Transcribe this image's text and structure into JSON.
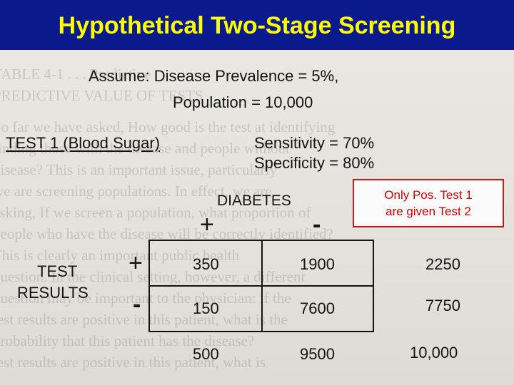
{
  "slide": {
    "title": "Hypothetical Two-Stage Screening"
  },
  "assumptions": {
    "prevalence": "Assume: Disease Prevalence = 5%,",
    "population": "Population = 10,000"
  },
  "test": {
    "name": "TEST 1 (Blood Sugar)",
    "sensitivity": "Sensitivity = 70%",
    "specificity": "Specificity = 80%"
  },
  "table": {
    "column_header": "DIABETES",
    "col_plus": "+",
    "col_minus": "-",
    "row_header_line1": "TEST",
    "row_header_line2": "RESULTS",
    "row_plus": "+",
    "row_minus": "-",
    "rows": [
      {
        "a": "350",
        "b": "1900",
        "total": "2250"
      },
      {
        "a": "150",
        "b": "7600",
        "total": "7750"
      }
    ],
    "totals": {
      "a": "500",
      "b": "9500",
      "total": "10,000"
    }
  },
  "note": {
    "line1": "Only Pos. Test 1",
    "line2": "are given Test 2"
  },
  "colors": {
    "background": "#0a1a8c",
    "title": "#ffff00",
    "note_border": "#e01010",
    "note_text": "#d00000"
  }
}
